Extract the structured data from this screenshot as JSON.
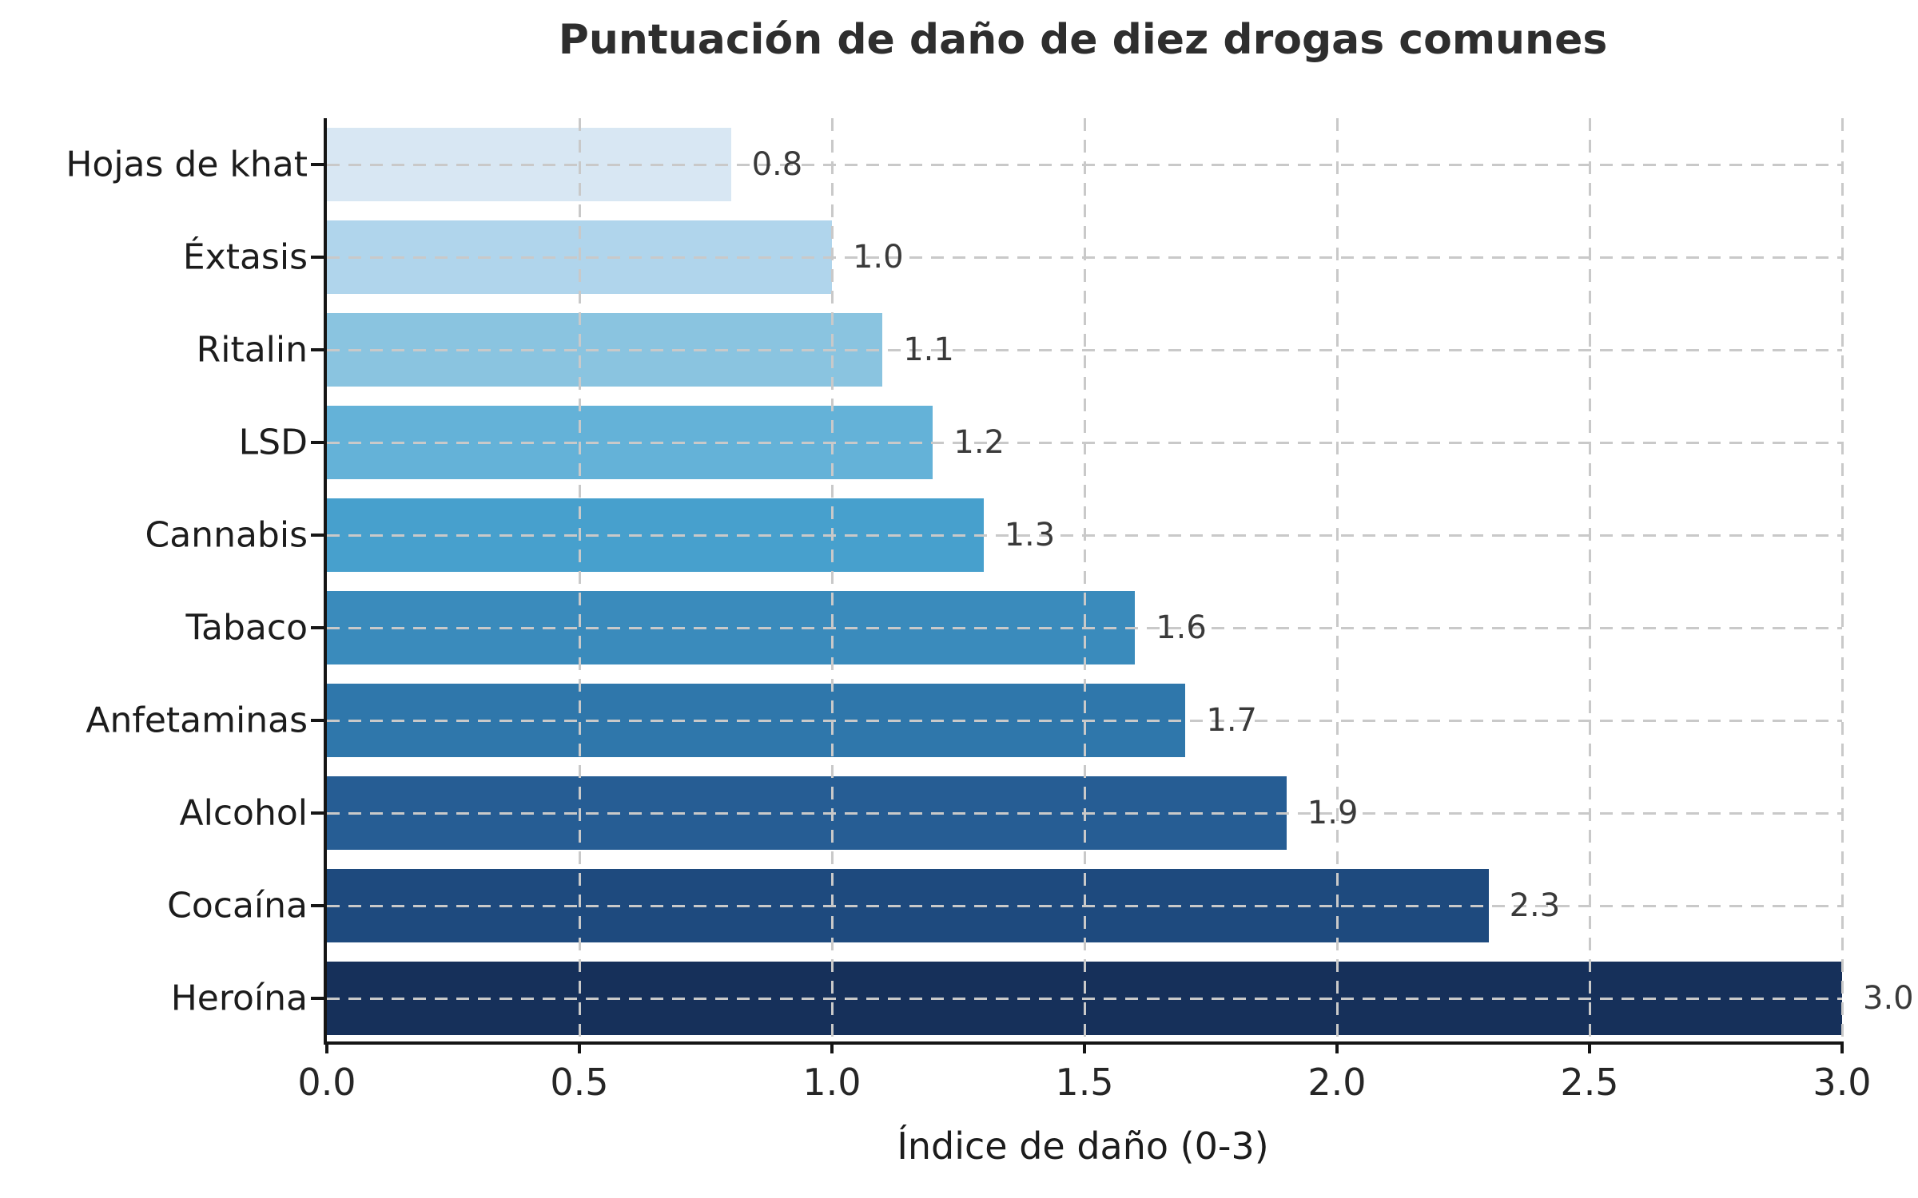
{
  "title": "Puntuación de daño de diez drogas comunes",
  "xlabel": "Índice de daño (0-3)",
  "chart_data": {
    "type": "bar",
    "orientation": "horizontal",
    "title": "Puntuación de daño de diez drogas comunes",
    "xlabel": "Índice de daño (0-3)",
    "ylabel": "",
    "categories": [
      "Hojas de khat",
      "Éxtasis",
      "Ritalin",
      "LSD",
      "Cannabis",
      "Tabaco",
      "Anfetaminas",
      "Alcohol",
      "Cocaína",
      "Heroína"
    ],
    "values": [
      0.8,
      1.0,
      1.1,
      1.2,
      1.3,
      1.6,
      1.7,
      1.9,
      2.3,
      3.0
    ],
    "value_labels": [
      "0.8",
      "1.0",
      "1.1",
      "1.2",
      "1.3",
      "1.6",
      "1.7",
      "1.9",
      "2.3",
      "3.0"
    ],
    "bar_colors": [
      "#d8e7f3",
      "#b0d5ec",
      "#8ac4e0",
      "#64b2d8",
      "#47a0cd",
      "#3a8bbc",
      "#2f77ab",
      "#265d94",
      "#1e4a7e",
      "#16305a"
    ],
    "xlim": [
      0,
      3
    ],
    "x_ticks": [
      "0.0",
      "0.5",
      "1.0",
      "1.5",
      "2.0",
      "2.5",
      "3.0"
    ],
    "grid": "dashed-both-axes",
    "legend": "none"
  },
  "colors": {
    "background": "#ffffff",
    "title_text": "#2e2e2e",
    "axis_spine": "#151515",
    "tick_label": "#262626",
    "category_label": "#1c1c1c",
    "value_label": "#3a3a3a",
    "gridline": "#c9c9c9"
  }
}
